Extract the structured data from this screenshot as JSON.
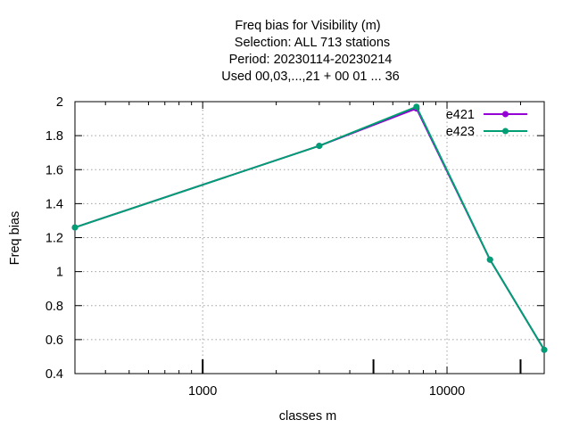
{
  "chart_data": {
    "type": "line",
    "title_lines": [
      "Freq bias  for Visibility (m)",
      "Selection: ALL    713 stations",
      "Period: 20230114-20230214",
      "Used  00,03,...,21  + 00 01 ... 36"
    ],
    "xlabel": "classes m",
    "ylabel": "Freq bias",
    "x_scale": "log",
    "xlim": [
      300,
      25000
    ],
    "ylim": [
      0.4,
      2.0
    ],
    "x_tick_labels": [
      {
        "value": 1000,
        "label": "1000"
      },
      {
        "value": 10000,
        "label": "10000"
      }
    ],
    "y_tick_labels": [
      {
        "value": 0.4,
        "label": "0.4"
      },
      {
        "value": 0.6,
        "label": "0.6"
      },
      {
        "value": 0.8,
        "label": "0.8"
      },
      {
        "value": 1.0,
        "label": "1"
      },
      {
        "value": 1.2,
        "label": "1.2"
      },
      {
        "value": 1.4,
        "label": "1.4"
      },
      {
        "value": 1.6,
        "label": "1.6"
      },
      {
        "value": 1.8,
        "label": "1.8"
      },
      {
        "value": 2.0,
        "label": "2"
      }
    ],
    "marked_x": [
      1000,
      5000,
      20000
    ],
    "grid": true,
    "legend_position": "top-right",
    "x": [
      300,
      3000,
      7500,
      15000,
      25000
    ],
    "series": [
      {
        "name": "e421",
        "color": "#9400d3",
        "values": [
          1.26,
          1.74,
          1.96,
          1.07,
          0.54
        ]
      },
      {
        "name": "e423",
        "color": "#009e73",
        "values": [
          1.26,
          1.74,
          1.97,
          1.07,
          0.54
        ]
      }
    ]
  }
}
